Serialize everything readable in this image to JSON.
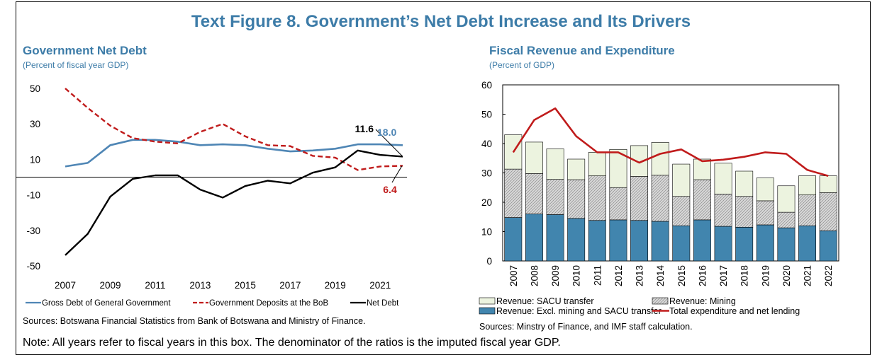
{
  "figure": {
    "title": "Text Figure 8. Government’s Net Debt Increase and Its Drivers",
    "note": "Note: All years refer to fiscal years in this box. The denominator of the ratios is the imputed fiscal year GDP."
  },
  "colors": {
    "title": "#3d7ca8",
    "gross": "#4f86b5",
    "deposits": "#c01b1b",
    "net": "#000000",
    "sacu": "#ecf3df",
    "mining": "#d9d9d9",
    "excl": "#4185ae",
    "expenditure": "#c01b1b"
  },
  "chart_data": [
    {
      "type": "line",
      "title": "Government Net Debt",
      "subtitle": "(Percent of fiscal year GDP)",
      "x": [
        2007,
        2008,
        2009,
        2010,
        2011,
        2012,
        2013,
        2014,
        2015,
        2016,
        2017,
        2018,
        2019,
        2020,
        2021,
        2022
      ],
      "x_tick_labels": [
        "2007",
        "2009",
        "2011",
        "2013",
        "2015",
        "2017",
        "2019",
        "2021"
      ],
      "y_tick_labels": [
        "50",
        "30",
        "10",
        "-10",
        "-30",
        "-50"
      ],
      "ylim": [
        -50,
        50
      ],
      "series": [
        {
          "name": "Gross Debt of General Government",
          "style": "solid",
          "values": [
            6,
            8,
            18,
            21,
            21,
            20,
            18,
            18.5,
            18,
            16,
            14.5,
            15,
            16,
            18.5,
            18.5,
            18.0
          ]
        },
        {
          "name": "Government Deposits at the BoB",
          "style": "dashed",
          "values": [
            50,
            39,
            29,
            22,
            20,
            19,
            25.5,
            30,
            23,
            18,
            17.5,
            12,
            11,
            4,
            6,
            6.4
          ]
        },
        {
          "name": "Net Debt",
          "style": "solid",
          "values": [
            -44,
            -32,
            -11,
            -1,
            1,
            1,
            -7,
            -11.5,
            -5,
            -2,
            -3.5,
            2.5,
            5.5,
            15,
            12.5,
            11.6
          ]
        }
      ],
      "annotations": [
        {
          "text": "11.6",
          "series": "Net Debt"
        },
        {
          "text": "18.0",
          "series": "Gross Debt of General Government"
        },
        {
          "text": "6.4",
          "series": "Government Deposits at the BoB"
        }
      ],
      "source": "Sources: Botswana Financial Statistics from Bank of Botswana and Ministry of Finance."
    },
    {
      "type": "bar",
      "stacked": true,
      "title": "Fiscal Revenue and Expenditure",
      "subtitle": "(Percent of GDP)",
      "categories": [
        "2007",
        "2008",
        "2009",
        "2010",
        "2011",
        "2012",
        "2013",
        "2014",
        "2015",
        "2016",
        "2017",
        "2018",
        "2019",
        "2020",
        "2021",
        "2022"
      ],
      "y_tick_labels": [
        "60",
        "50",
        "40",
        "30",
        "20",
        "10",
        "0"
      ],
      "ylim": [
        0,
        60
      ],
      "series": [
        {
          "name": "Revenue: Excl. mining and SACU transfer",
          "values": [
            14.8,
            16,
            15.8,
            14.5,
            13.8,
            14,
            13.8,
            13.5,
            12,
            14,
            11.8,
            11.5,
            12.3,
            11.3,
            12,
            10.3
          ]
        },
        {
          "name": "Revenue: Mining",
          "values": [
            16.5,
            13.8,
            12,
            13.2,
            15.2,
            11,
            15,
            15.7,
            10,
            13.7,
            11,
            10.5,
            8.2,
            5.3,
            10.5,
            13
          ]
        },
        {
          "name": "Revenue: SACU transfer",
          "values": [
            11.7,
            10.7,
            10.4,
            7,
            8,
            13,
            10.5,
            11.2,
            11,
            7,
            10.5,
            8.6,
            7.8,
            9,
            6.5,
            5.7
          ]
        },
        {
          "name": "Total expenditure and net lending",
          "type": "line",
          "values": [
            37,
            48,
            52,
            42.5,
            37,
            37,
            33.5,
            36.5,
            38,
            34,
            34.5,
            35.5,
            37,
            36.5,
            31,
            29
          ]
        }
      ],
      "source": "Sources: Minstry of Finance, and IMF staff calculation."
    }
  ]
}
